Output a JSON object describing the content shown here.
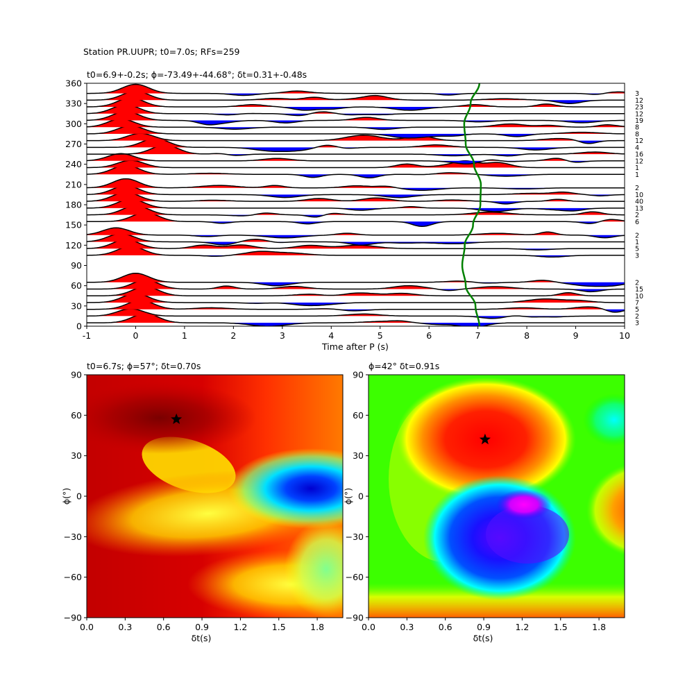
{
  "figure": {
    "suptitle": "Station PR.UUPR; t0=7.0s; RFs=259"
  },
  "chart_data": [
    {
      "type": "line",
      "panel": "top",
      "title": "t0=6.9+-0.2s; ϕ=-73.49+-44.68°; δt=0.31+-0.48s",
      "xlabel": "Time after P (s)",
      "ylabel": "",
      "xlim": [
        -1,
        10
      ],
      "ylim": [
        0,
        360
      ],
      "xticks": [
        -1,
        0,
        1,
        2,
        3,
        4,
        5,
        6,
        7,
        8,
        9,
        10
      ],
      "yticks": [
        0,
        30,
        60,
        90,
        120,
        150,
        180,
        210,
        240,
        270,
        300,
        330,
        360
      ],
      "fill_positive": "#ff0000",
      "fill_negative": "#0000ff",
      "trace_color": "#000000",
      "curve_color": "#008000",
      "series_note": "stacked receiver-function traces by back-azimuth (10° bins), count labels at right",
      "traces": [
        {
          "baz": 5,
          "count": "3",
          "pulse_t": 0.2,
          "pulse_a": 1.0
        },
        {
          "baz": 15,
          "count": "2",
          "pulse_t": -0.1,
          "pulse_a": 0.8
        },
        {
          "baz": 25,
          "count": "5",
          "pulse_t": 0.1,
          "pulse_a": 1.0
        },
        {
          "baz": 35,
          "count": "7",
          "pulse_t": 0.0,
          "pulse_a": 1.0
        },
        {
          "baz": 45,
          "count": "10",
          "pulse_t": 0.2,
          "pulse_a": 1.0
        },
        {
          "baz": 55,
          "count": "15",
          "pulse_t": 0.2,
          "pulse_a": 1.0
        },
        {
          "baz": 65,
          "count": "2",
          "pulse_t": 0.0,
          "pulse_a": 1.0
        },
        {
          "baz": 105,
          "count": "3",
          "pulse_t": -0.1,
          "pulse_a": 1.0
        },
        {
          "baz": 115,
          "count": "5",
          "pulse_t": -0.2,
          "pulse_a": 1.0
        },
        {
          "baz": 125,
          "count": "1",
          "pulse_t": -0.3,
          "pulse_a": 0.9
        },
        {
          "baz": 135,
          "count": "2",
          "pulse_t": -0.4,
          "pulse_a": 0.8
        },
        {
          "baz": 155,
          "count": "6",
          "pulse_t": 0.2,
          "pulse_a": 1.0
        },
        {
          "baz": 165,
          "count": "2",
          "pulse_t": 0.0,
          "pulse_a": 1.0
        },
        {
          "baz": 175,
          "count": "13",
          "pulse_t": -0.1,
          "pulse_a": 1.0
        },
        {
          "baz": 185,
          "count": "40",
          "pulse_t": -0.2,
          "pulse_a": 1.0
        },
        {
          "baz": 195,
          "count": "10",
          "pulse_t": -0.2,
          "pulse_a": 1.0
        },
        {
          "baz": 205,
          "count": "2",
          "pulse_t": -0.2,
          "pulse_a": 1.0
        },
        {
          "baz": 225,
          "count": "1",
          "pulse_t": -0.2,
          "pulse_a": 1.0
        },
        {
          "baz": 235,
          "count": "1",
          "pulse_t": -0.1,
          "pulse_a": 0.8
        },
        {
          "baz": 245,
          "count": "12",
          "pulse_t": -0.3,
          "pulse_a": 0.8
        },
        {
          "baz": 255,
          "count": "16",
          "pulse_t": 0.6,
          "pulse_a": 1.0
        },
        {
          "baz": 265,
          "count": "4",
          "pulse_t": 0.4,
          "pulse_a": 1.0
        },
        {
          "baz": 275,
          "count": "12",
          "pulse_t": 0.1,
          "pulse_a": 0.8
        },
        {
          "baz": 285,
          "count": "8",
          "pulse_t": -0.1,
          "pulse_a": 0.9
        },
        {
          "baz": 295,
          "count": "8",
          "pulse_t": -0.3,
          "pulse_a": 0.9
        },
        {
          "baz": 305,
          "count": "19",
          "pulse_t": -0.2,
          "pulse_a": 1.0
        },
        {
          "baz": 315,
          "count": "12",
          "pulse_t": -0.2,
          "pulse_a": 1.0
        },
        {
          "baz": 325,
          "count": "23",
          "pulse_t": -0.1,
          "pulse_a": 1.0
        },
        {
          "baz": 335,
          "count": "12",
          "pulse_t": 0.0,
          "pulse_a": 1.0
        },
        {
          "baz": 345,
          "count": "3",
          "pulse_t": 0.0,
          "pulse_a": 1.0
        }
      ],
      "t0_curve": [
        {
          "baz": 0,
          "t": 7.03
        },
        {
          "baz": 30,
          "t": 6.95
        },
        {
          "baz": 60,
          "t": 6.75
        },
        {
          "baz": 90,
          "t": 6.68
        },
        {
          "baz": 120,
          "t": 6.73
        },
        {
          "baz": 150,
          "t": 6.9
        },
        {
          "baz": 180,
          "t": 7.05
        },
        {
          "baz": 210,
          "t": 7.06
        },
        {
          "baz": 240,
          "t": 6.92
        },
        {
          "baz": 270,
          "t": 6.75
        },
        {
          "baz": 300,
          "t": 6.72
        },
        {
          "baz": 330,
          "t": 6.85
        },
        {
          "baz": 360,
          "t": 7.03
        }
      ]
    },
    {
      "type": "heatmap",
      "panel": "bottom-left",
      "title": "t0=6.7s; ϕ=57°; δt=0.70s",
      "xlabel": "δt(s)",
      "ylabel": "ϕ(°)",
      "xlim": [
        0,
        2
      ],
      "ylim": [
        -90,
        90
      ],
      "xticks": [
        "0.0",
        "0.3",
        "0.6",
        "0.9",
        "1.2",
        "1.5",
        "1.8"
      ],
      "yticks": [
        "90",
        "60",
        "30",
        "0",
        "−30",
        "−60",
        "−90"
      ],
      "best": {
        "dt": 0.7,
        "phi": 57
      },
      "colormap": "hot"
    },
    {
      "type": "heatmap",
      "panel": "bottom-right",
      "title": "ϕ=42° δt=0.91s",
      "xlabel": "δt(s)",
      "ylabel": "ϕ(°)",
      "xlim": [
        0,
        2
      ],
      "ylim": [
        -90,
        90
      ],
      "xticks": [
        "0.0",
        "0.3",
        "0.6",
        "0.9",
        "1.2",
        "1.5",
        "1.8"
      ],
      "yticks": [
        "90",
        "60",
        "30",
        "0",
        "−30",
        "−60",
        "−90"
      ],
      "best": {
        "dt": 0.91,
        "phi": 42
      },
      "colormap": "hsv"
    }
  ]
}
